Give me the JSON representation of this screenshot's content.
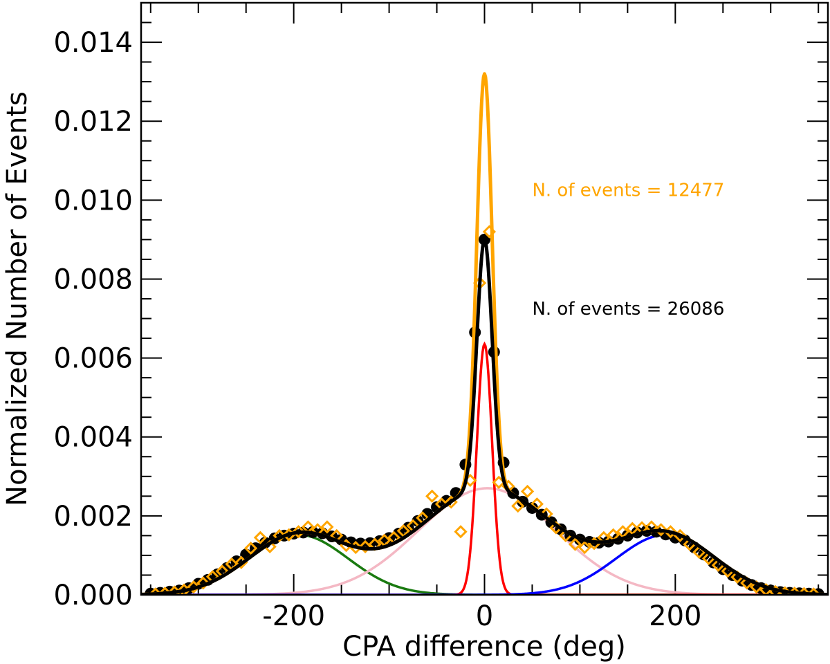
{
  "chart_data": {
    "type": "line",
    "xlabel": "CPA difference (deg)",
    "ylabel": "Normalized Number of Events",
    "xlim": [
      -360,
      360
    ],
    "ylim": [
      0,
      0.015
    ],
    "x_ticks": [
      -200,
      0,
      200
    ],
    "x_tick_labels": [
      "-200",
      "0",
      "200"
    ],
    "y_ticks": [
      0,
      0.002,
      0.004,
      0.006,
      0.008,
      0.01,
      0.012,
      0.014
    ],
    "y_tick_labels": [
      "0.000",
      "0.002",
      "0.004",
      "0.006",
      "0.008",
      "0.010",
      "0.012",
      "0.014"
    ],
    "annotations": [
      {
        "text": "N. of events = 12477",
        "color": "#ffa500",
        "x": 50,
        "y": 0.0101
      },
      {
        "text": "N. of events = 26086",
        "color": "#000000",
        "x": 50,
        "y": 0.0071
      }
    ],
    "fit_components": [
      {
        "name": "green gaussian",
        "color": "#1a7a10",
        "center": -195,
        "amplitude": 0.00152,
        "sigma": 52
      },
      {
        "name": "pink gaussian",
        "color": "#f4b8c4",
        "center": 3,
        "amplitude": 0.0027,
        "sigma": 72
      },
      {
        "name": "red gaussian",
        "color": "#ff0000",
        "center": 0,
        "amplitude": 0.00635,
        "sigma": 8
      },
      {
        "name": "blue gaussian",
        "color": "#0000ff",
        "center": 190,
        "amplitude": 0.00152,
        "sigma": 52
      }
    ],
    "fit_totals": [
      {
        "name": "orange total fit",
        "color": "#ffa500",
        "peak_at_0": 0.0132
      },
      {
        "name": "black total fit",
        "color": "#000000",
        "peak_at_0": 0.009
      }
    ],
    "series": [
      {
        "name": "N. of events = 26086",
        "marker": "circle",
        "color": "#000000",
        "x": [
          -350,
          -340,
          -330,
          -320,
          -310,
          -300,
          -290,
          -280,
          -270,
          -260,
          -250,
          -240,
          -230,
          -220,
          -210,
          -200,
          -190,
          -180,
          -170,
          -160,
          -150,
          -140,
          -130,
          -120,
          -110,
          -100,
          -90,
          -80,
          -70,
          -60,
          -50,
          -40,
          -30,
          -20,
          -10,
          0,
          10,
          20,
          30,
          40,
          50,
          60,
          70,
          80,
          90,
          100,
          110,
          120,
          130,
          140,
          150,
          160,
          170,
          180,
          190,
          200,
          210,
          220,
          230,
          240,
          250,
          260,
          270,
          280,
          290,
          300,
          310,
          320,
          330,
          340,
          350
        ],
        "y": [
          3e-05,
          5e-05,
          8e-05,
          0.00011,
          0.00017,
          0.00028,
          0.00038,
          0.00052,
          0.00068,
          0.00085,
          0.00102,
          0.00118,
          0.00132,
          0.00143,
          0.0015,
          0.00155,
          0.00158,
          0.00159,
          0.00156,
          0.00148,
          0.0014,
          0.00133,
          0.0013,
          0.00131,
          0.00136,
          0.00144,
          0.00155,
          0.0017,
          0.00187,
          0.00205,
          0.00222,
          0.00238,
          0.00258,
          0.0033,
          0.00665,
          0.009,
          0.00615,
          0.00335,
          0.00258,
          0.00236,
          0.0022,
          0.00203,
          0.00184,
          0.00166,
          0.0015,
          0.0014,
          0.00134,
          0.00132,
          0.00135,
          0.00142,
          0.0015,
          0.00158,
          0.00162,
          0.0016,
          0.00153,
          0.00145,
          0.00138,
          0.0012,
          0.00102,
          0.00082,
          0.00065,
          0.0005,
          0.00036,
          0.00025,
          0.00017,
          0.00011,
          7e-05,
          5e-05,
          4e-05,
          3e-05,
          2e-05
        ]
      },
      {
        "name": "N. of events = 12477",
        "marker": "diamond",
        "color": "#ffa500",
        "x": [
          -345,
          -335,
          -325,
          -315,
          -305,
          -295,
          -285,
          -275,
          -265,
          -255,
          -245,
          -235,
          -225,
          -215,
          -205,
          -195,
          -185,
          -175,
          -165,
          -155,
          -145,
          -135,
          -125,
          -115,
          -105,
          -95,
          -85,
          -75,
          -65,
          -55,
          -45,
          -35,
          -25,
          -15,
          -5,
          5,
          15,
          25,
          35,
          45,
          55,
          65,
          75,
          85,
          95,
          105,
          115,
          125,
          135,
          145,
          155,
          165,
          175,
          185,
          195,
          205,
          215,
          225,
          235,
          245,
          255,
          265,
          275,
          285,
          295,
          305,
          315,
          325,
          335,
          345
        ],
        "y": [
          2e-05,
          4e-05,
          7e-05,
          0.00012,
          0.0002,
          0.0003,
          0.00046,
          0.0006,
          0.00078,
          0.00082,
          0.00118,
          0.00145,
          0.00122,
          0.0015,
          0.00152,
          0.0016,
          0.00172,
          0.00165,
          0.00172,
          0.0015,
          0.00125,
          0.0012,
          0.00122,
          0.00128,
          0.00138,
          0.00145,
          0.00162,
          0.00175,
          0.00195,
          0.0025,
          0.0023,
          0.00235,
          0.0016,
          0.0029,
          0.0079,
          0.0092,
          0.00285,
          0.00275,
          0.00225,
          0.00262,
          0.0023,
          0.00205,
          0.0017,
          0.0015,
          0.00128,
          0.0012,
          0.0013,
          0.00145,
          0.00152,
          0.0016,
          0.00168,
          0.0017,
          0.00172,
          0.00165,
          0.0016,
          0.0015,
          0.00128,
          0.00108,
          0.00092,
          0.00075,
          0.0006,
          0.00045,
          0.0003,
          0.0002,
          0.00013,
          8e-05,
          5e-05,
          4e-05,
          3e-05,
          2e-05
        ]
      }
    ]
  }
}
